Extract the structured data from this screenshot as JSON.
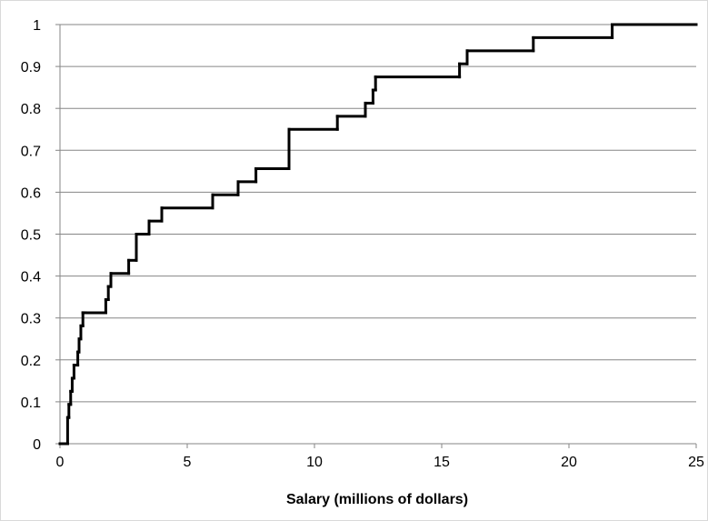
{
  "chart_data": {
    "type": "line",
    "step": true,
    "title": "",
    "xlabel": "Salary (millions of dollars)",
    "ylabel": "",
    "xlim": [
      0,
      25
    ],
    "ylim": [
      0,
      1
    ],
    "x_ticks": [
      0,
      5,
      10,
      15,
      20,
      25
    ],
    "y_ticks": [
      0,
      0.1,
      0.2,
      0.3,
      0.4,
      0.5,
      0.6,
      0.7,
      0.8,
      0.9,
      1
    ],
    "x_tick_labels": [
      "0",
      "5",
      "10",
      "15",
      "20",
      "25"
    ],
    "y_tick_labels": [
      "0",
      "0.1",
      "0.2",
      "0.3",
      "0.4",
      "0.5",
      "0.6",
      "0.7",
      "0.8",
      "0.9",
      "1"
    ],
    "grid": {
      "horizontal": true,
      "vertical": false
    },
    "legend": "none",
    "series": [
      {
        "line_color": "#000000",
        "x": [
          0,
          0.3,
          0.35,
          0.42,
          0.48,
          0.55,
          0.7,
          0.75,
          0.82,
          0.9,
          1.0,
          1.8,
          1.9,
          2.0,
          2.7,
          3.0,
          3.5,
          4.0,
          6.0,
          7.0,
          7.7,
          9.0,
          10.9,
          12.0,
          12.3,
          12.4,
          15.7,
          16.0,
          18.6,
          21.7,
          25
        ],
        "y": [
          0,
          0.0625,
          0.09375,
          0.125,
          0.15625,
          0.1875,
          0.21875,
          0.25,
          0.28125,
          0.3125,
          0.3125,
          0.34375,
          0.375,
          0.40625,
          0.4375,
          0.5,
          0.53125,
          0.5625,
          0.59375,
          0.625,
          0.65625,
          0.75,
          0.78125,
          0.8125,
          0.84375,
          0.875,
          0.90625,
          0.9375,
          0.96875,
          1,
          1
        ]
      }
    ]
  }
}
